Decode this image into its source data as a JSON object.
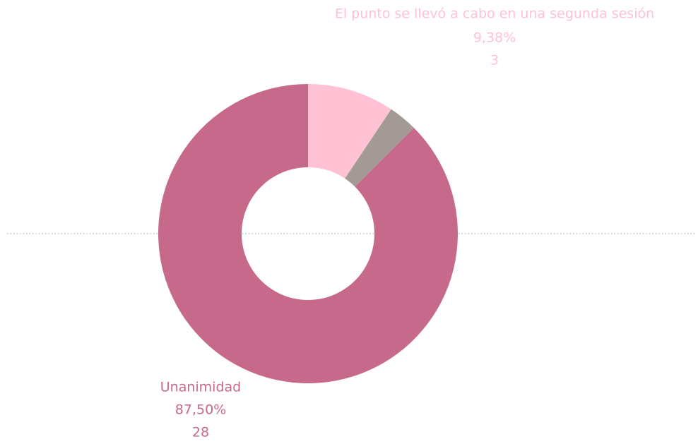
{
  "chart_data": {
    "type": "donut",
    "categories": [
      "El punto se llevó a cabo en una segunda sesión",
      null,
      "Unanimidad"
    ],
    "values": [
      3,
      1,
      28
    ],
    "percentages": [
      9.38,
      3.13,
      87.5
    ],
    "percentage_labels": [
      "9,38%",
      null,
      "87,50%"
    ],
    "colors": [
      "#ffc2d4",
      "#a39a96",
      "#c6698b"
    ]
  }
}
